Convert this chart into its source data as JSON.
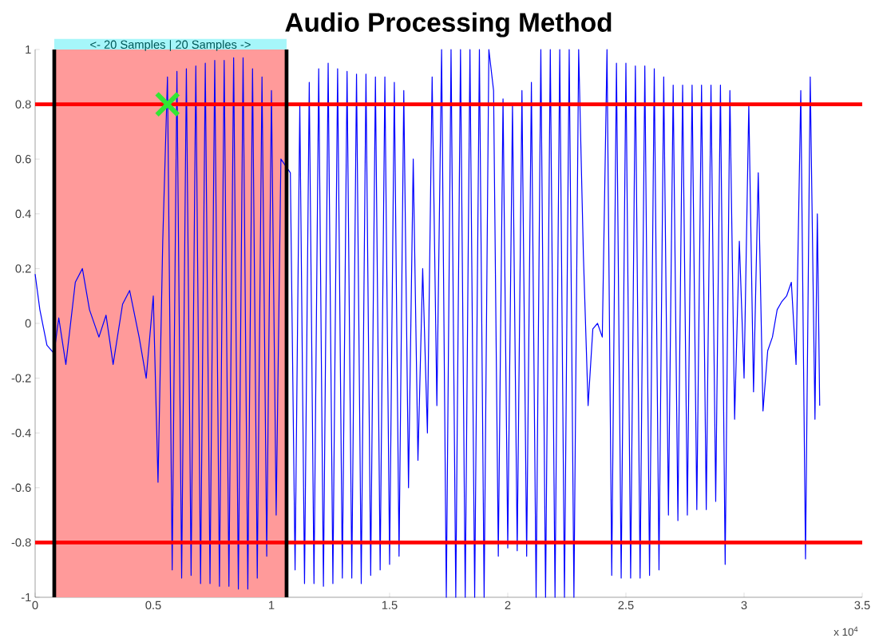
{
  "chart_data": {
    "type": "line",
    "title": "Audio Processing Method",
    "xlim": [
      0,
      3.5
    ],
    "ylim": [
      -1,
      1
    ],
    "xticks": [
      0,
      0.5,
      1,
      1.5,
      2,
      2.5,
      3,
      3.5
    ],
    "yticks": [
      -1,
      -0.8,
      -0.6,
      -0.4,
      -0.2,
      0,
      0.2,
      0.4,
      0.6,
      0.8,
      1
    ],
    "annotations": [
      "x 10$^{4}$"
    ],
    "bands": [
      {
        "axis": "x",
        "from": 0.081,
        "to": 1.064,
        "label": "<-  20 Samples  |  20 Samples  ->",
        "color": "#ff9a9a"
      }
    ],
    "ref_lines": [
      {
        "axis": "y",
        "value": 0.8,
        "color": "#ff0000"
      },
      {
        "axis": "y",
        "value": -0.8,
        "color": "#ff0000"
      },
      {
        "axis": "x",
        "value": 0.081,
        "color": "#000000"
      },
      {
        "axis": "x",
        "value": 1.064,
        "color": "#000000"
      }
    ],
    "series": [
      {
        "color": "#0000ff",
        "marker": "none",
        "x": [
          0,
          0.02,
          0.05,
          0.08,
          0.1,
          0.13,
          0.17,
          0.2,
          0.23,
          0.27,
          0.3,
          0.33,
          0.37,
          0.4,
          0.44,
          0.47,
          0.5,
          0.52,
          0.54,
          0.56,
          0.58,
          0.6,
          0.62,
          0.64,
          0.66,
          0.68,
          0.7,
          0.72,
          0.74,
          0.76,
          0.78,
          0.8,
          0.82,
          0.84,
          0.86,
          0.88,
          0.9,
          0.92,
          0.94,
          0.96,
          0.98,
          1.0,
          1.02,
          1.04,
          1.06,
          1.08,
          1.1,
          1.12,
          1.14,
          1.16,
          1.18,
          1.2,
          1.22,
          1.24,
          1.26,
          1.28,
          1.3,
          1.32,
          1.34,
          1.36,
          1.38,
          1.4,
          1.42,
          1.44,
          1.46,
          1.48,
          1.5,
          1.52,
          1.54,
          1.56,
          1.58,
          1.6,
          1.62,
          1.64,
          1.66,
          1.68,
          1.7,
          1.72,
          1.74,
          1.76,
          1.78,
          1.8,
          1.82,
          1.84,
          1.86,
          1.88,
          1.9,
          1.92,
          1.94,
          1.96,
          1.98,
          2.0,
          2.02,
          2.04,
          2.06,
          2.08,
          2.1,
          2.12,
          2.14,
          2.16,
          2.18,
          2.2,
          2.22,
          2.24,
          2.26,
          2.28,
          2.3,
          2.32,
          2.34,
          2.36,
          2.38,
          2.4,
          2.42,
          2.44,
          2.46,
          2.48,
          2.5,
          2.52,
          2.54,
          2.56,
          2.58,
          2.6,
          2.62,
          2.64,
          2.66,
          2.68,
          2.7,
          2.72,
          2.74,
          2.76,
          2.78,
          2.8,
          2.82,
          2.84,
          2.86,
          2.88,
          2.9,
          2.92,
          2.94,
          2.96,
          2.98,
          3.0,
          3.02,
          3.04,
          3.06,
          3.08,
          3.1,
          3.12,
          3.14,
          3.16,
          3.18,
          3.2,
          3.22,
          3.24,
          3.26,
          3.28,
          3.3,
          3.31,
          3.32
        ],
        "values": [
          0.18,
          0.05,
          -0.08,
          -0.11,
          0.02,
          -0.15,
          0.15,
          0.2,
          0.05,
          -0.05,
          0.03,
          -0.15,
          0.07,
          0.12,
          -0.05,
          -0.2,
          0.1,
          -0.58,
          0.3,
          0.9,
          -0.9,
          0.92,
          -0.93,
          0.93,
          -0.92,
          0.94,
          -0.95,
          0.95,
          -0.95,
          0.96,
          -0.96,
          0.96,
          -0.96,
          0.97,
          -0.97,
          0.97,
          -0.97,
          0.93,
          -0.93,
          0.9,
          -0.85,
          0.85,
          -0.7,
          0.6,
          null,
          0.55,
          -0.9,
          0.8,
          -0.95,
          0.88,
          -0.95,
          0.93,
          -0.96,
          0.95,
          -0.95,
          0.93,
          -0.93,
          0.92,
          -0.93,
          0.91,
          -0.95,
          0.91,
          -0.92,
          0.9,
          -0.9,
          0.9,
          -0.88,
          0.88,
          -0.85,
          0.85,
          -0.6,
          0.6,
          -0.5,
          0.2,
          -0.4,
          0.9,
          -0.3,
          1,
          -1,
          1,
          -1,
          1,
          -1,
          1,
          -1,
          1,
          -1,
          1,
          0.85,
          -0.85,
          0.82,
          -0.82,
          0.8,
          -0.83,
          0.85,
          -0.85,
          0.88,
          -1,
          1,
          -1,
          1,
          -1,
          1,
          -1,
          1,
          -1,
          1,
          0.25,
          -0.3,
          -0.02,
          0,
          -0.05,
          1,
          -0.92,
          0.95,
          -0.93,
          0.95,
          -0.93,
          0.94,
          -0.93,
          0.94,
          -0.92,
          0.93,
          -0.9,
          0.9,
          -0.7,
          0.87,
          -0.72,
          0.87,
          -0.7,
          0.87,
          -0.68,
          0.87,
          -0.68,
          0.87,
          -0.65,
          0.87,
          -0.88,
          0.85,
          -0.35,
          0.3,
          -0.2,
          0.8,
          -0.25,
          0.55,
          -0.32,
          -0.1,
          -0.05,
          0.05,
          0.08,
          0.1,
          0.15,
          -0.15,
          0.85,
          -0.86,
          0.9,
          -0.35,
          0.4,
          -0.3
        ]
      },
      {
        "type": "scatter",
        "color": "#33e633",
        "marker": "cross",
        "x": [
          0.56
        ],
        "values": [
          0.8
        ]
      }
    ]
  }
}
